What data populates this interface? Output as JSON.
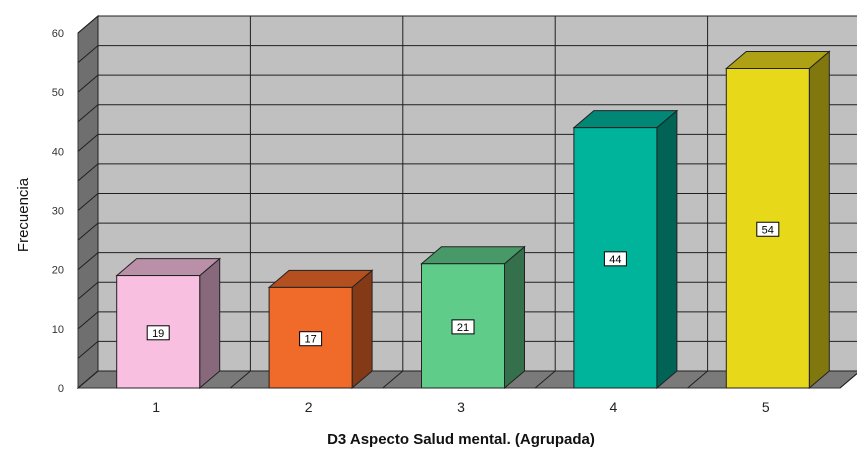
{
  "chart_data": {
    "type": "bar",
    "categories": [
      "1",
      "2",
      "3",
      "4",
      "5"
    ],
    "values": [
      19,
      17,
      21,
      44,
      54
    ],
    "colors": [
      "#f8bfe0",
      "#f06a2a",
      "#5fcc8a",
      "#00b49c",
      "#e8d81a"
    ],
    "xlabel": "D3 Aspecto Salud mental. (Agrupada)",
    "ylabel": "Frecuencia",
    "ylim": [
      0,
      60
    ],
    "yticks": [
      0,
      10,
      20,
      30,
      40,
      50,
      60
    ],
    "grid": true,
    "style": "3d-bar",
    "wall_color": "#c0c0c0",
    "wall_side_color": "#6f6f6f",
    "floor_color": "#7a7a7a"
  }
}
